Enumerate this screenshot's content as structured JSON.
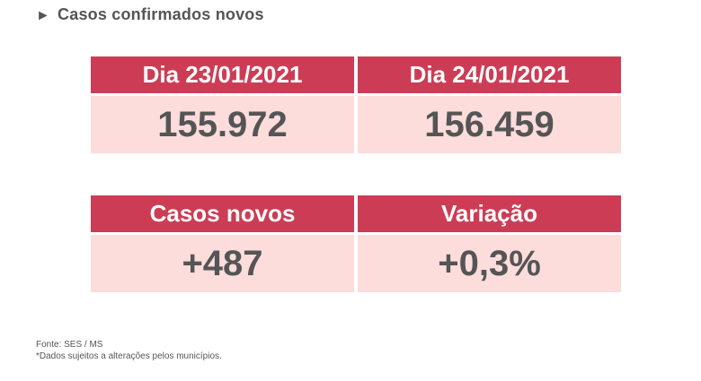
{
  "heading": {
    "arrow": "►",
    "title": "Casos confirmados novos"
  },
  "cards": [
    {
      "label": "Dia 23/01/2021",
      "value": "155.972"
    },
    {
      "label": "Dia 24/01/2021",
      "value": "156.459"
    },
    {
      "label": "Casos novos",
      "value": "+487"
    },
    {
      "label": "Variação",
      "value": "+0,3%"
    }
  ],
  "footer": {
    "source": "Fonte: SES / MS",
    "note": "*Dados sujeitos a alterações pelos municípios."
  },
  "colors": {
    "header_bg": "#cc3d55",
    "value_bg": "#fddcdc",
    "text": "#555555"
  }
}
